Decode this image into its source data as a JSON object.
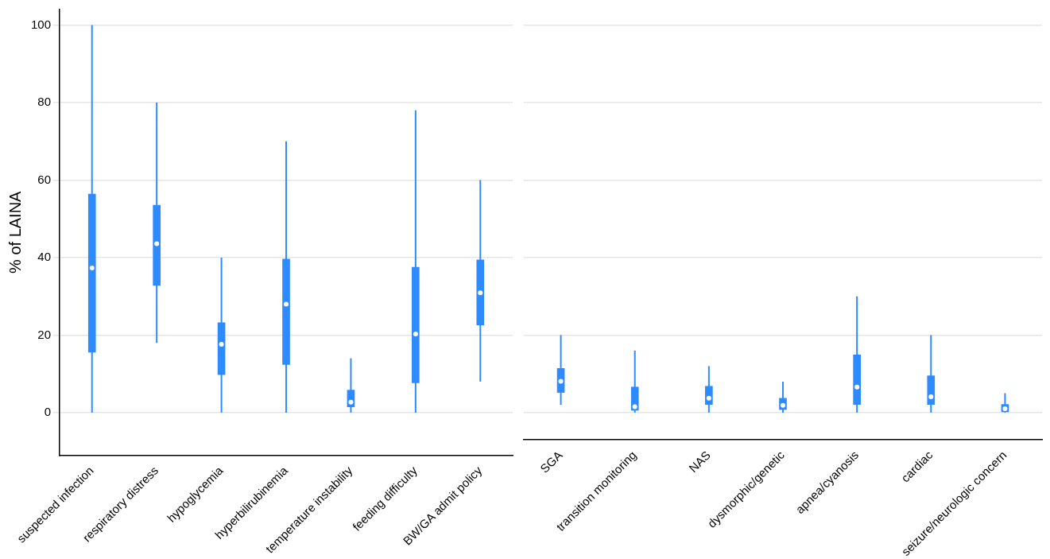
{
  "chart_data": [
    {
      "type": "box",
      "ylabel": "% of LAINA",
      "color": "#2e8bff",
      "grid": "y",
      "ylim": [
        -11,
        104
      ],
      "yticks": [
        0,
        20,
        40,
        60,
        80,
        100
      ],
      "categories": [
        "suspected infection",
        "respiratory distress",
        "hypoglycemia",
        "hyperbilirubinemia",
        "temperature instability",
        "feeding difficulty",
        "BW/GA admit policy"
      ],
      "boxes": [
        {
          "low": 0,
          "q1": 15.6,
          "median": 37.3,
          "q3": 56.4,
          "high": 100
        },
        {
          "low": 18,
          "q1": 32.8,
          "median": 43.6,
          "q3": 53.5,
          "high": 80
        },
        {
          "low": 0,
          "q1": 9.8,
          "median": 17.6,
          "q3": 23.2,
          "high": 40
        },
        {
          "low": 0,
          "q1": 12.4,
          "median": 28,
          "q3": 39.6,
          "high": 70
        },
        {
          "low": 0,
          "q1": 1.5,
          "median": 2.7,
          "q3": 5.8,
          "high": 14
        },
        {
          "low": 0,
          "q1": 7.7,
          "median": 20.3,
          "q3": 37.5,
          "high": 78
        },
        {
          "low": 8,
          "q1": 22.6,
          "median": 30.9,
          "q3": 39.4,
          "high": 60
        }
      ]
    },
    {
      "type": "box",
      "color": "#2e8bff",
      "grid": "y",
      "ylim": [
        -7,
        100
      ],
      "yticks": [
        0,
        20,
        40,
        60,
        80,
        100
      ],
      "tick_labels": "x",
      "categories": [
        "SGA",
        "transition monitoring",
        "NAS",
        "dysmorphic/genetic",
        "apnea/cyanosis",
        "cardiac",
        "seizure/neurologic concern"
      ],
      "boxes": [
        {
          "low": 2,
          "q1": 5.2,
          "median": 8.1,
          "q3": 11.4,
          "high": 20
        },
        {
          "low": 0,
          "q1": 0.6,
          "median": 1.5,
          "q3": 6.6,
          "high": 16
        },
        {
          "low": 0,
          "q1": 2.1,
          "median": 3.7,
          "q3": 6.8,
          "high": 12
        },
        {
          "low": 0,
          "q1": 0.8,
          "median": 1.9,
          "q3": 3.7,
          "high": 8
        },
        {
          "low": 0,
          "q1": 2.1,
          "median": 6.6,
          "q3": 14.9,
          "high": 30
        },
        {
          "low": 0,
          "q1": 2.1,
          "median": 4.1,
          "q3": 9.5,
          "high": 20
        },
        {
          "low": 0,
          "q1": 0.2,
          "median": 1.0,
          "q3": 2.1,
          "high": 5
        }
      ]
    }
  ]
}
